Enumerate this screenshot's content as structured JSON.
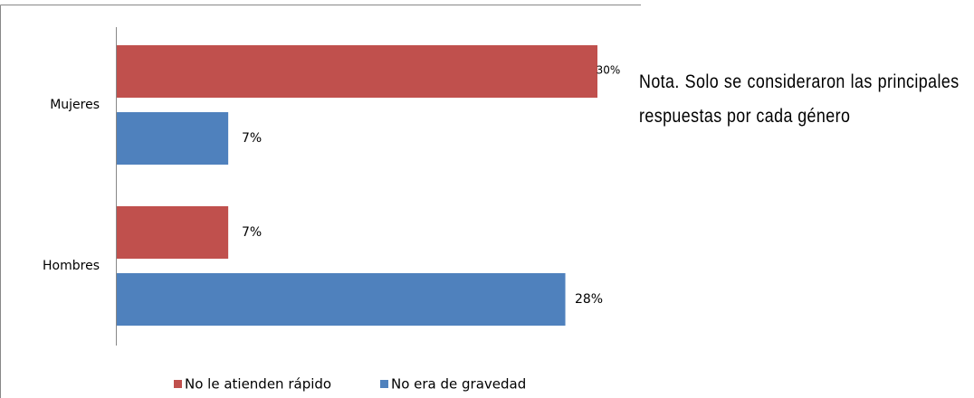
{
  "chart_data": {
    "type": "bar",
    "orientation": "horizontal",
    "categories": [
      "Mujeres",
      "Hombres"
    ],
    "series": [
      {
        "name": "No le atienden rápido",
        "color": "#c0504d",
        "values": [
          30,
          7
        ],
        "value_labels": [
          "30%",
          "7%"
        ]
      },
      {
        "name": "No era de gravedad",
        "color": "#4f81bd",
        "values": [
          7,
          28
        ],
        "value_labels": [
          "7%",
          "28%"
        ]
      }
    ],
    "legend": "bottom"
  },
  "note": "Nota. Solo se consideraron las principales respuestas por cada género"
}
